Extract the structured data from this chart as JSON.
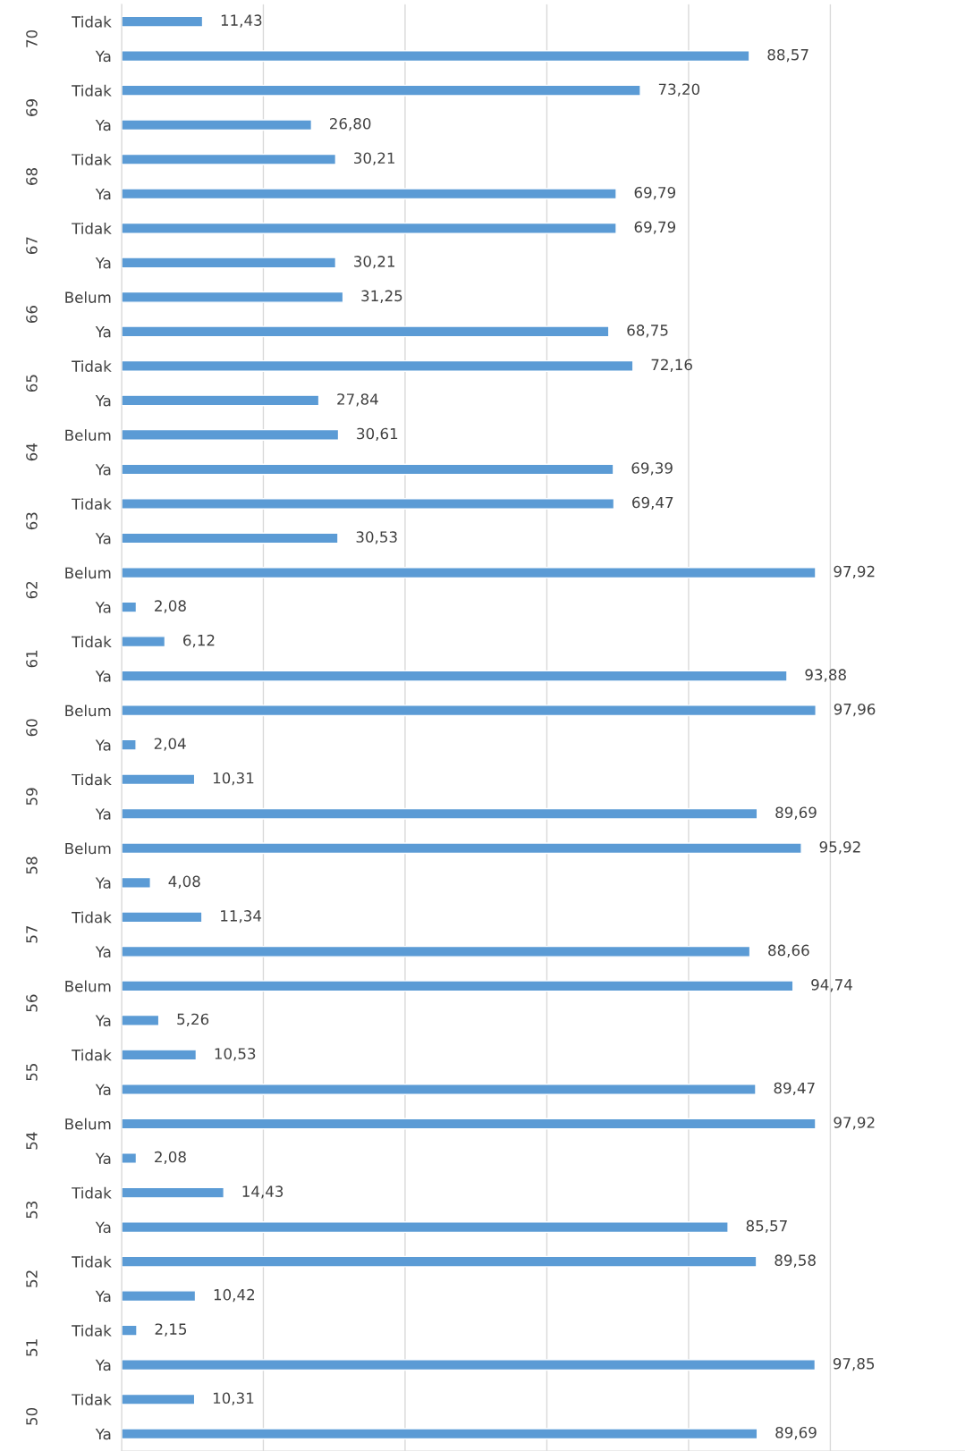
{
  "chart_data": {
    "type": "bar",
    "orientation": "horizontal",
    "color": "#5b9bd5",
    "categories": [
      "Tidak",
      "Ya",
      "Tidak",
      "Ya",
      "Tidak",
      "Ya",
      "Tidak",
      "Ya",
      "Belum",
      "Ya",
      "Tidak",
      "Ya",
      "Belum",
      "Ya",
      "Tidak",
      "Ya",
      "Belum",
      "Ya",
      "Tidak",
      "Ya",
      "Belum",
      "Ya",
      "Tidak",
      "Ya",
      "Belum",
      "Ya",
      "Tidak",
      "Ya",
      "Belum",
      "Ya",
      "Tidak",
      "Ya",
      "Belum",
      "Ya",
      "Tidak",
      "Ya",
      "Tidak",
      "Ya",
      "Tidak",
      "Ya",
      "Tidak",
      "Ya"
    ],
    "values": [
      11.43,
      88.57,
      73.2,
      26.8,
      30.21,
      69.79,
      69.79,
      30.21,
      31.25,
      68.75,
      72.16,
      27.84,
      30.61,
      69.39,
      69.47,
      30.53,
      97.92,
      2.08,
      6.12,
      93.88,
      97.96,
      2.04,
      10.31,
      89.69,
      95.92,
      4.08,
      11.34,
      88.66,
      94.74,
      5.26,
      10.53,
      89.47,
      97.92,
      2.08,
      14.43,
      85.57,
      89.58,
      10.42,
      2.15,
      97.85,
      10.31,
      89.69
    ],
    "value_labels": [
      "11,43",
      "88,57",
      "73,20",
      "26,80",
      "30,21",
      "69,79",
      "69,79",
      "30,21",
      "31,25",
      "68,75",
      "72,16",
      "27,84",
      "30,61",
      "69,39",
      "69,47",
      "30,53",
      "97,92",
      "2,08",
      "6,12",
      "93,88",
      "97,96",
      "2,04",
      "10,31",
      "89,69",
      "95,92",
      "4,08",
      "11,34",
      "88,66",
      "94,74",
      "5,26",
      "10,53",
      "89,47",
      "97,92",
      "2,08",
      "14,43",
      "85,57",
      "89,58",
      "10,42",
      "2,15",
      "97,85",
      "10,31",
      "89,69"
    ],
    "annotations": [
      "70",
      "69",
      "68",
      "67",
      "66",
      "65",
      "64",
      "63",
      "62",
      "61",
      "60",
      "59",
      "58",
      "57",
      "56",
      "55",
      "54",
      "53",
      "52",
      "51",
      "50"
    ],
    "xlim": [
      0,
      119
    ],
    "xticks": [
      {
        "value": 0,
        "label": null
      },
      {
        "value": 20,
        "label": null
      },
      {
        "value": 40,
        "label": null
      },
      {
        "value": 60,
        "label": null
      },
      {
        "value": 80,
        "label": null
      },
      {
        "value": 100,
        "label": null
      }
    ],
    "grid": "x",
    "legend": false
  }
}
